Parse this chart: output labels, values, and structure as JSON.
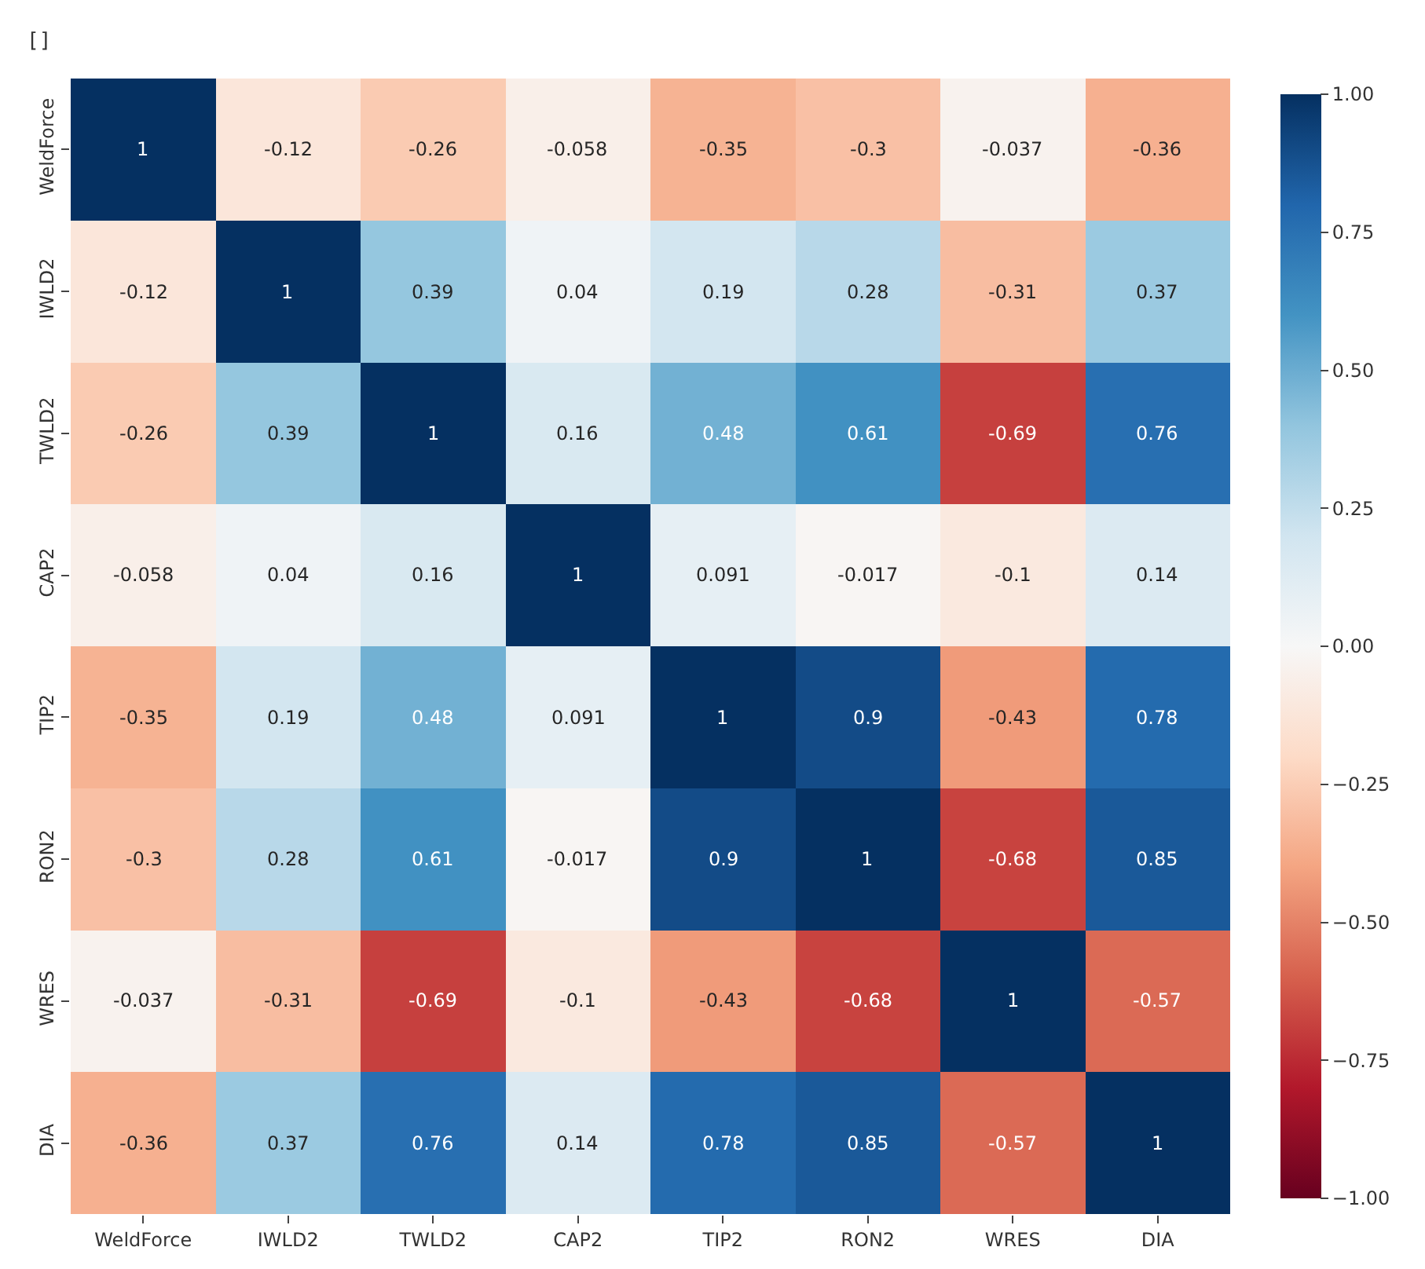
{
  "chart_data": {
    "type": "heatmap",
    "categories": [
      "WeldForce",
      "IWLD2",
      "TWLD2",
      "CAP2",
      "TIP2",
      "RON2",
      "WRES",
      "DIA"
    ],
    "y_categories": [
      "WeldForce",
      "IWLD2",
      "TWLD2",
      "CAP2",
      "TIP2",
      "RON2",
      "WRES",
      "DIA"
    ],
    "cells": [
      [
        1,
        -0.12,
        -0.26,
        -0.058,
        -0.35,
        -0.3,
        -0.037,
        -0.36
      ],
      [
        -0.12,
        1,
        0.39,
        0.04,
        0.19,
        0.28,
        -0.31,
        0.37
      ],
      [
        -0.26,
        0.39,
        1,
        0.16,
        0.48,
        0.61,
        -0.69,
        0.76
      ],
      [
        -0.058,
        0.04,
        0.16,
        1,
        0.091,
        -0.017,
        -0.1,
        0.14
      ],
      [
        -0.35,
        0.19,
        0.48,
        0.091,
        1,
        0.9,
        -0.43,
        0.78
      ],
      [
        -0.3,
        0.28,
        0.61,
        -0.017,
        0.9,
        1,
        -0.68,
        0.85
      ],
      [
        -0.037,
        -0.31,
        -0.69,
        -0.1,
        -0.43,
        -0.68,
        1,
        -0.57
      ],
      [
        -0.36,
        0.37,
        0.76,
        0.14,
        0.78,
        0.85,
        -0.57,
        1
      ]
    ],
    "clim": [
      -1,
      1
    ],
    "cticks": [
      {
        "value": -1,
        "label": "−1.00"
      },
      {
        "value": -0.75,
        "label": "−0.75"
      },
      {
        "value": -0.5,
        "label": "−0.50"
      },
      {
        "value": -0.25,
        "label": "−0.25"
      },
      {
        "value": 0,
        "label": "0.00"
      },
      {
        "value": 0.25,
        "label": "0.25"
      },
      {
        "value": 0.5,
        "label": "0.50"
      },
      {
        "value": 0.75,
        "label": "0.75"
      },
      {
        "value": 1,
        "label": "1.00"
      }
    ],
    "data_labels": true,
    "annotations": [
      "[]"
    ]
  }
}
